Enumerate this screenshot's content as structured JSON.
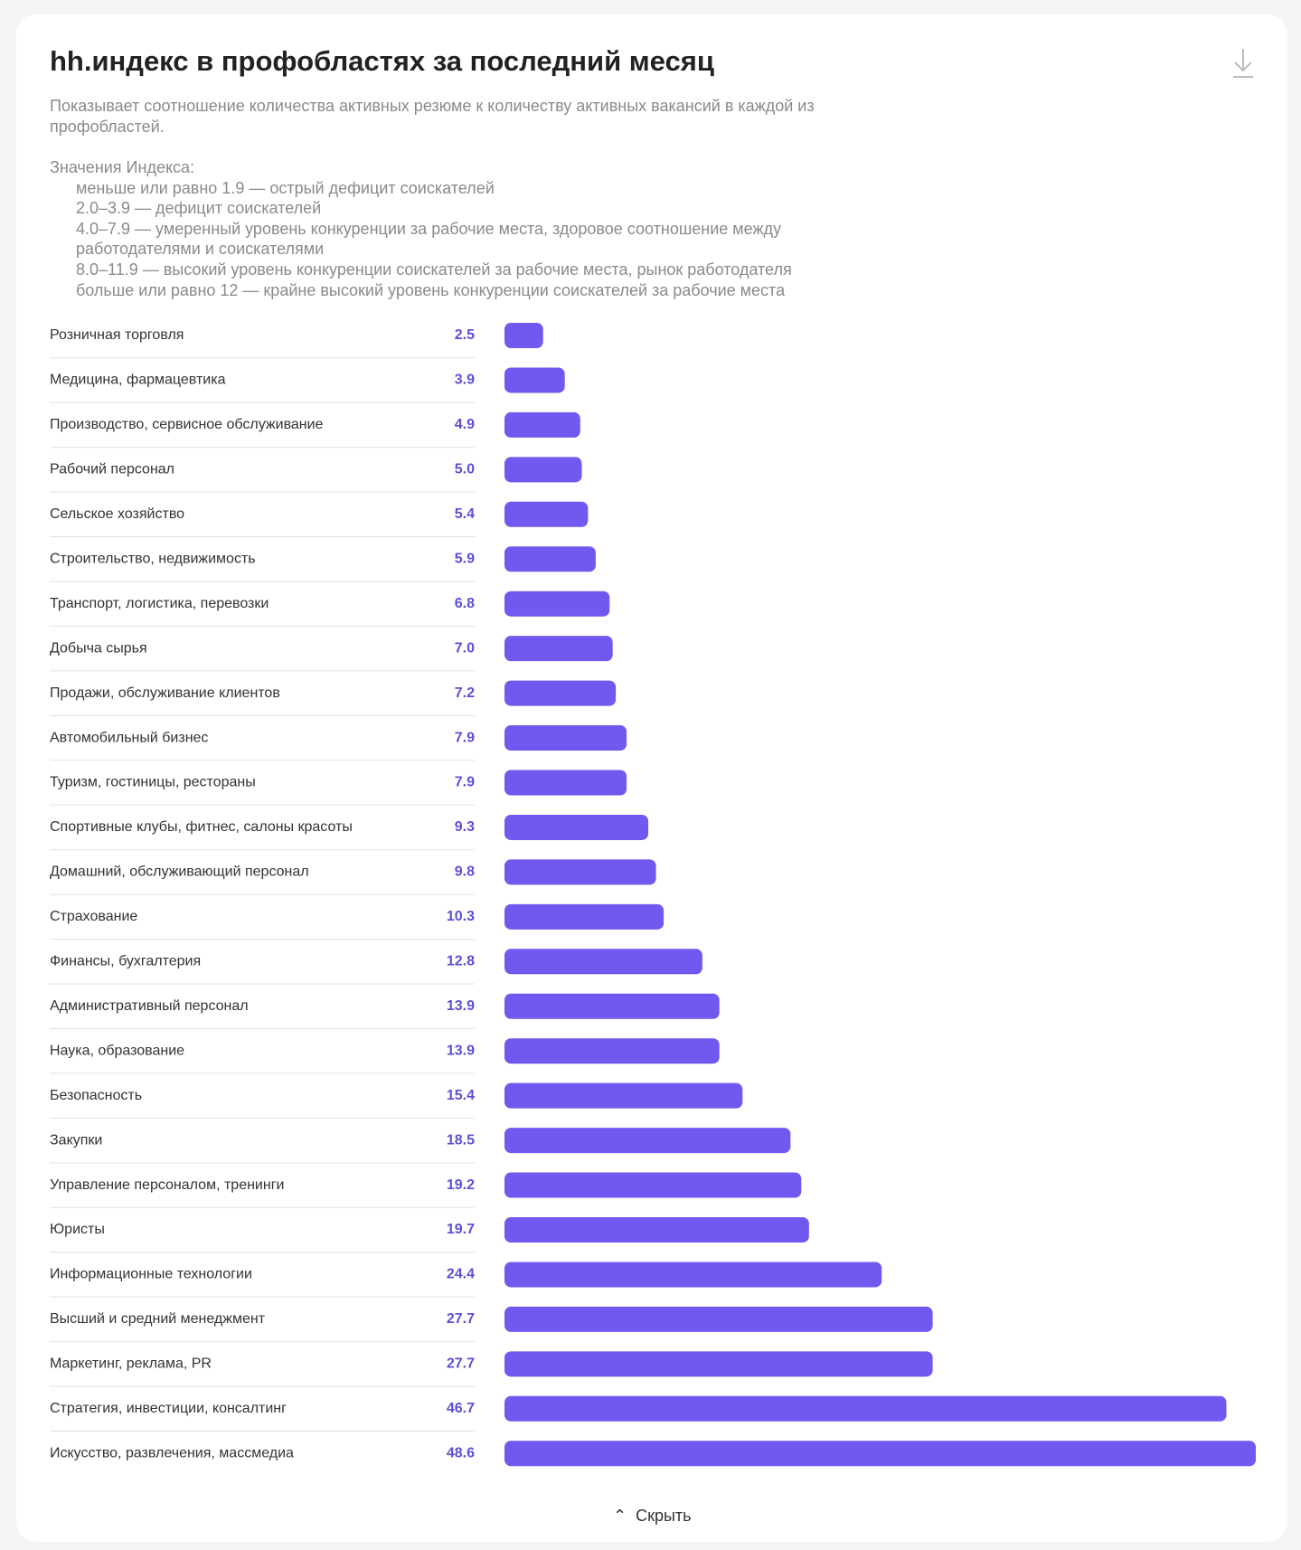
{
  "chart_data": {
    "type": "bar",
    "orientation": "horizontal",
    "title": "hh.индекс в профобластях за последний месяц",
    "subtitle": "Показывает соотношение количества активных резюме к количеству активных вакансий в каждой из профобластей.",
    "legend_heading": "Значения Индекса:",
    "legend_lines": [
      "меньше или равно 1.9 — острый дефицит соискателей",
      "2.0–3.9 — дефицит соискателей",
      "4.0–7.9 — умеренный уровень конкуренции за рабочие места, здоровое соотношение между работодателями и соискателями",
      "8.0–11.9 — высокий уровень конкуренции соискателей за рабочие места, рынок работодателя",
      "больше или равно 12 — крайне высокий уровень конкуренции соискателей за рабочие места"
    ],
    "categories": [
      "Розничная торговля",
      "Медицина, фармацевтика",
      "Производство, сервисное обслуживание",
      "Рабочий персонал",
      "Сельское хозяйство",
      "Строительство, недвижимость",
      "Транспорт, логистика, перевозки",
      "Добыча сырья",
      "Продажи, обслуживание клиентов",
      "Автомобильный бизнес",
      "Туризм, гостиницы, рестораны",
      "Спортивные клубы, фитнес, салоны красоты",
      "Домашний, обслуживающий персонал",
      "Страхование",
      "Финансы, бухгалтерия",
      "Административный персонал",
      "Наука, образование",
      "Безопасность",
      "Закупки",
      "Управление персоналом, тренинги",
      "Юристы",
      "Информационные технологии",
      "Высший и средний менеджмент",
      "Маркетинг, реклама, PR",
      "Стратегия, инвестиции, консалтинг",
      "Искусство, развлечения, массмедиа"
    ],
    "values": [
      2.5,
      3.9,
      4.9,
      5,
      5.4,
      5.9,
      6.8,
      7,
      7.2,
      7.9,
      7.9,
      9.3,
      9.8,
      10.3,
      12.8,
      13.9,
      13.9,
      15.4,
      18.5,
      19.2,
      19.7,
      24.4,
      27.7,
      27.7,
      46.7,
      48.6
    ],
    "value_labels": [
      "2.5",
      "3.9",
      "4.9",
      "5.0",
      "5.4",
      "5.9",
      "6.8",
      "7.0",
      "7.2",
      "7.9",
      "7.9",
      "9.3",
      "9.8",
      "10.3",
      "12.8",
      "13.9",
      "13.9",
      "15.4",
      "18.5",
      "19.2",
      "19.7",
      "24.4",
      "27.7",
      "27.7",
      "46.7",
      "48.6"
    ],
    "color": "#7059ee",
    "label_color": "#5b4fd6",
    "button": "Скрыть"
  }
}
